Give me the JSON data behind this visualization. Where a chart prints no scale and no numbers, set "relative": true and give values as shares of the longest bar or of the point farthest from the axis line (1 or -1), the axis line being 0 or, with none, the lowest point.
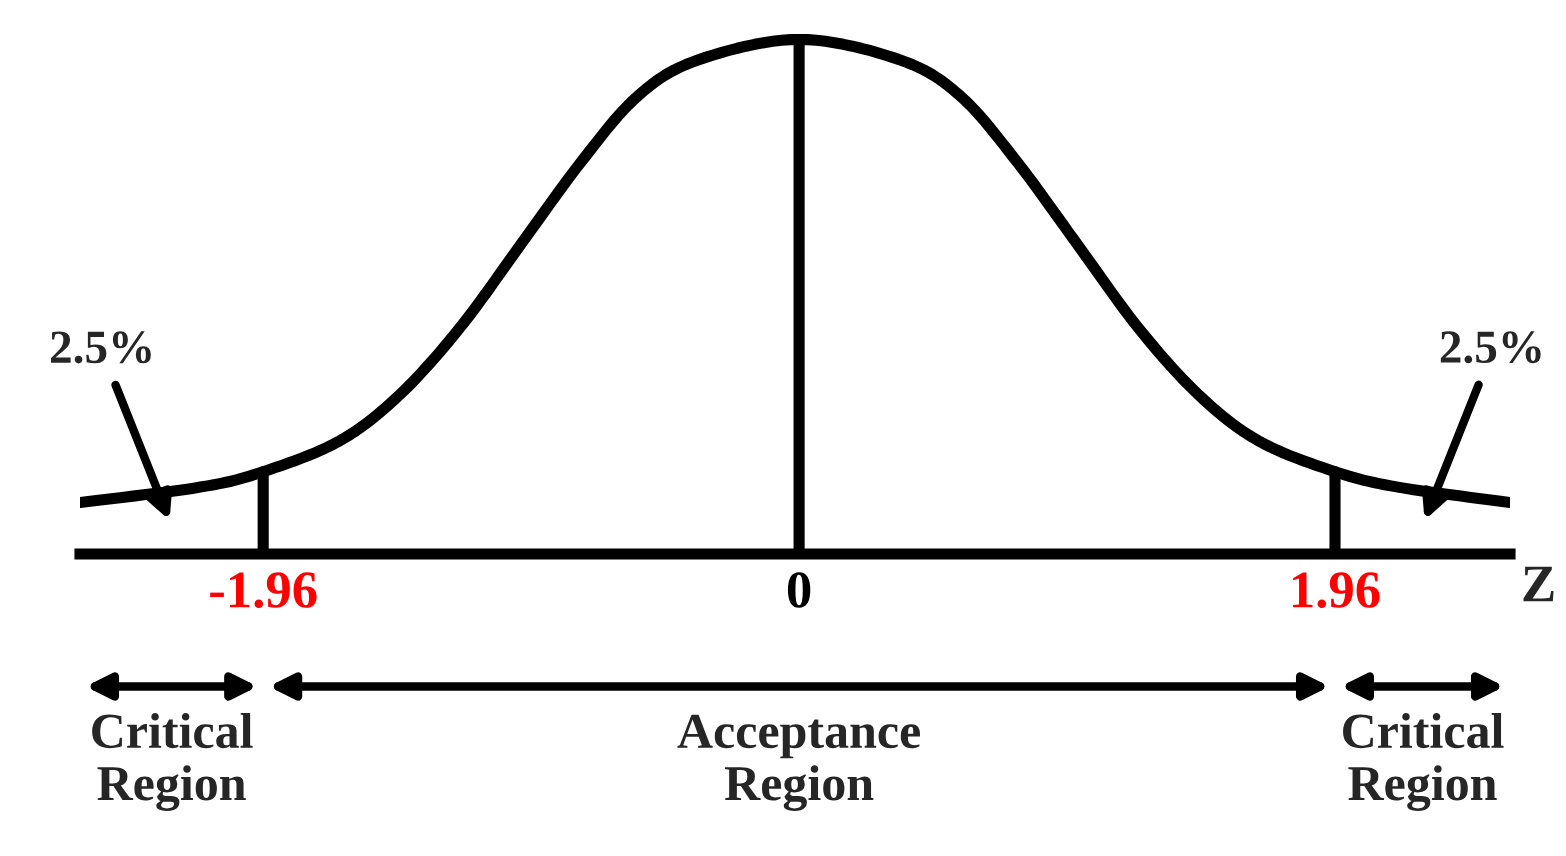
{
  "chart_data": {
    "type": "line",
    "relative": true,
    "xlabel": "Z",
    "x": [
      -2.63,
      -2.19,
      -1.96,
      -1.68,
      -1.46,
      -1.24,
      -1.02,
      -0.8,
      -0.59,
      -0.37,
      0,
      0.37,
      0.59,
      0.8,
      1.02,
      1.24,
      1.46,
      1.68,
      1.96,
      2.19,
      2.6
    ],
    "series": [
      {
        "color": "#000000",
        "values": [
          0.1,
          0.13,
          0.16,
          0.22,
          0.31,
          0.44,
          0.6,
          0.76,
          0.89,
          0.96,
          1.0,
          0.96,
          0.89,
          0.76,
          0.6,
          0.44,
          0.31,
          0.22,
          0.16,
          0.13,
          0.1
        ]
      }
    ],
    "xlim": [
      -2.63,
      2.6
    ],
    "xticks": [
      -1.96,
      0,
      1.96
    ],
    "ref_lines": [
      {
        "axis": "x",
        "value": -1.96
      },
      {
        "axis": "x",
        "value": 0
      },
      {
        "axis": "x",
        "value": 1.96
      }
    ],
    "annotations": [
      "2.5%",
      "2.5%",
      "Critical\nRegion",
      "Acceptance\nRegion",
      "Critical\nRegion"
    ],
    "grid": false,
    "legend": false,
    "marker": "none",
    "line_style": "solid"
  }
}
